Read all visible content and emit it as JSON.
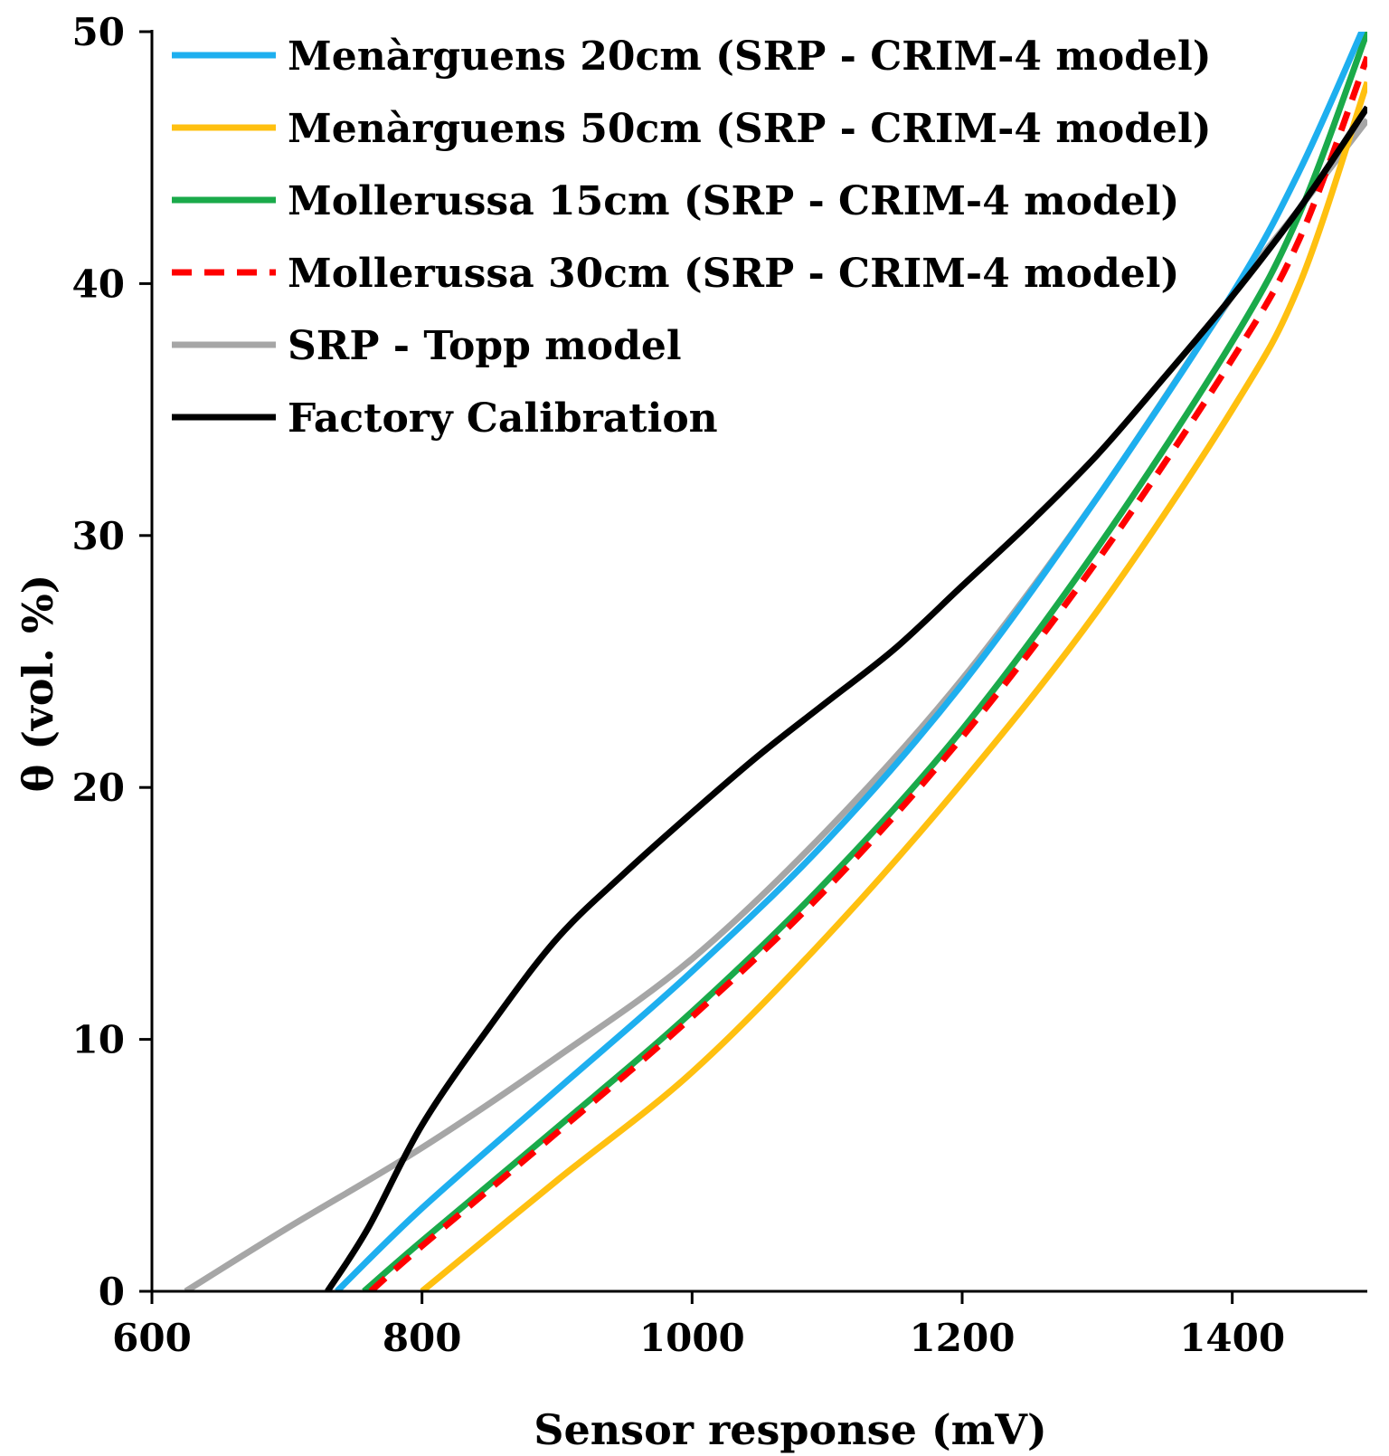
{
  "chart_data": {
    "type": "line",
    "title": "",
    "xlabel": "Sensor response (mV)",
    "ylabel": "θ (vol. %)",
    "xlim": [
      600,
      1500
    ],
    "ylim": [
      0,
      50
    ],
    "x_ticks": [
      600,
      800,
      1000,
      1200,
      1400
    ],
    "y_ticks": [
      0,
      10,
      20,
      30,
      40,
      50
    ],
    "grid": false,
    "legend_position": "top-left",
    "series": [
      {
        "name": "Menàrguens 20cm (SRP - CRIM-4 model)",
        "color": "#1EAFEF",
        "dash": "solid",
        "x": [
          737,
          800,
          900,
          1000,
          1100,
          1200,
          1300,
          1400,
          1450,
          1500
        ],
        "y": [
          0,
          3.3,
          8.0,
          12.7,
          17.9,
          24.1,
          31.5,
          39.6,
          44.5,
          50.5
        ]
      },
      {
        "name": "Menàrguens 50cm (SRP - CRIM-4 model)",
        "color": "#FFC010",
        "dash": "solid",
        "x": [
          800,
          900,
          1000,
          1100,
          1200,
          1300,
          1400,
          1450,
          1500
        ],
        "y": [
          0,
          4.4,
          8.7,
          14.1,
          20.2,
          27.0,
          35.0,
          40.0,
          48.0
        ]
      },
      {
        "name": "Mollerussa 15cm (SRP - CRIM-4 model)",
        "color": "#1AAA4A",
        "dash": "solid",
        "x": [
          757,
          800,
          900,
          1000,
          1100,
          1200,
          1300,
          1400,
          1450,
          1500
        ],
        "y": [
          0,
          2.0,
          6.5,
          11.1,
          16.3,
          22.3,
          29.5,
          37.7,
          42.8,
          50.0
        ]
      },
      {
        "name": "Mollerussa 30cm (SRP - CRIM-4 model)",
        "color": "#FF0000",
        "dash": "dashed",
        "x": [
          762,
          800,
          900,
          1000,
          1100,
          1200,
          1300,
          1400,
          1450,
          1500
        ],
        "y": [
          0,
          1.8,
          6.3,
          10.9,
          16.0,
          22.0,
          29.0,
          37.0,
          41.8,
          49.0
        ]
      },
      {
        "name": "SRP - Topp model",
        "color": "#A6A6A6",
        "dash": "solid",
        "x": [
          625,
          700,
          800,
          900,
          1000,
          1100,
          1200,
          1300,
          1400,
          1450,
          1500
        ],
        "y": [
          0,
          2.5,
          5.7,
          9.3,
          13.2,
          18.3,
          24.3,
          31.5,
          39.5,
          43.0,
          46.5
        ]
      },
      {
        "name": "Factory Calibration",
        "color": "#000000",
        "dash": "solid",
        "x": [
          730,
          760,
          800,
          850,
          900,
          950,
          1000,
          1050,
          1100,
          1150,
          1200,
          1250,
          1300,
          1350,
          1400,
          1450,
          1500
        ],
        "y": [
          0,
          2.5,
          6.6,
          10.5,
          14.0,
          16.6,
          19.0,
          21.3,
          23.4,
          25.5,
          28.0,
          30.5,
          33.2,
          36.3,
          39.5,
          43.0,
          47.0
        ]
      }
    ]
  }
}
